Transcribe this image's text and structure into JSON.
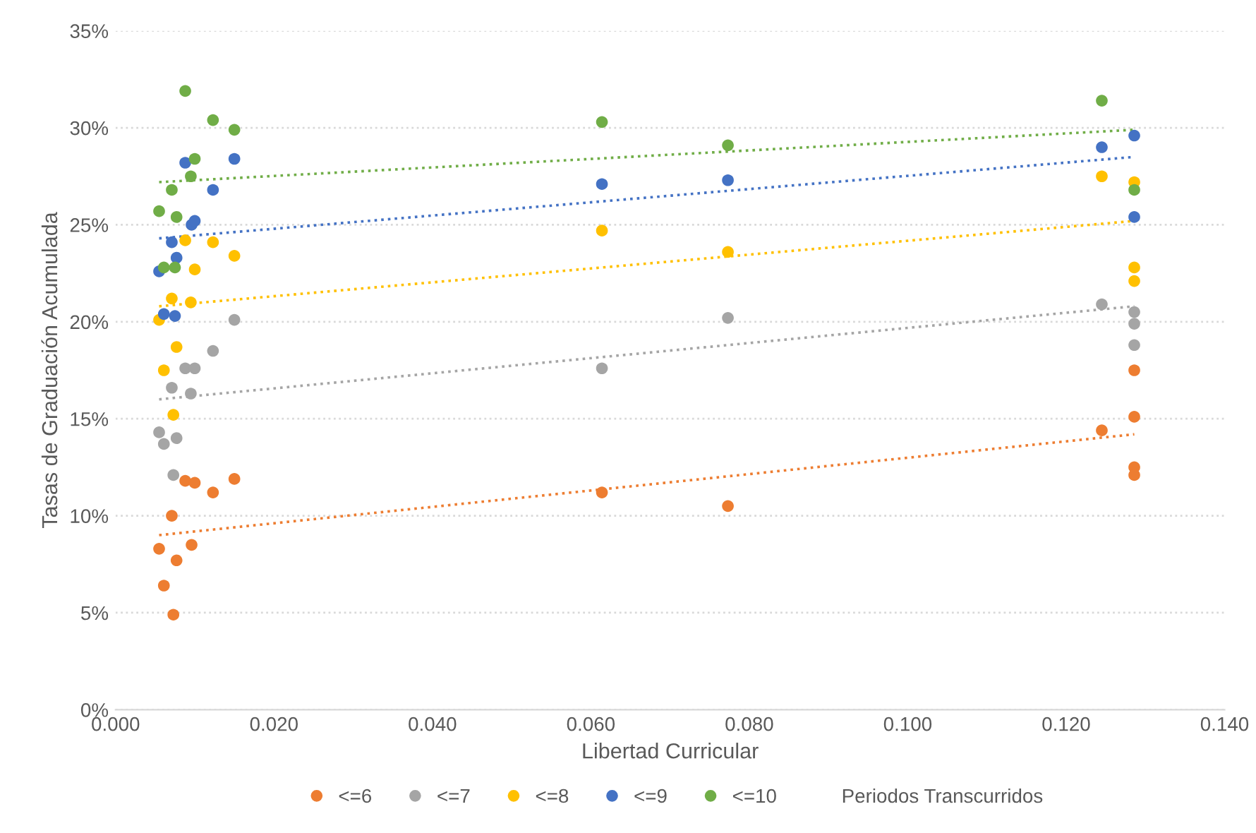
{
  "chart_data": {
    "type": "scatter",
    "xlabel": "Libertad Curricular",
    "ylabel": "Tasas de Graduación Acumulada",
    "legend_title": "Periodos Transcurridos",
    "xlim": [
      0,
      0.14
    ],
    "xticks": [
      {
        "value": 0,
        "label": "0.000"
      },
      {
        "value": 0.02,
        "label": "0.020"
      },
      {
        "value": 0.04,
        "label": "0.040"
      },
      {
        "value": 0.06,
        "label": "0.060"
      },
      {
        "value": 0.08,
        "label": "0.080"
      },
      {
        "value": 0.1,
        "label": "0.100"
      },
      {
        "value": 0.12,
        "label": "0.120"
      },
      {
        "value": 0.14,
        "label": "0.140"
      }
    ],
    "ylim": [
      0,
      35
    ],
    "yticks": [
      {
        "value": 0,
        "label": "0%"
      },
      {
        "value": 5,
        "label": "5%"
      },
      {
        "value": 10,
        "label": "10%"
      },
      {
        "value": 15,
        "label": "15%"
      },
      {
        "value": 20,
        "label": "20%"
      },
      {
        "value": 25,
        "label": "25%"
      },
      {
        "value": 30,
        "label": "30%"
      },
      {
        "value": 35,
        "label": "35%"
      }
    ],
    "grid": "y",
    "legend": "bottom",
    "marker": "circle",
    "series": [
      {
        "name": "<=6",
        "color": "#ed7d31",
        "x": [
          0.0055,
          0.0061,
          0.0071,
          0.0073,
          0.0077,
          0.0088,
          0.0096,
          0.01,
          0.0123,
          0.015,
          0.0614,
          0.0773,
          0.1245,
          0.1286,
          0.1286,
          0.1286,
          0.1286
        ],
        "values": [
          8.3,
          6.4,
          10.0,
          4.9,
          7.7,
          11.8,
          8.5,
          11.7,
          11.2,
          11.9,
          11.2,
          10.5,
          14.4,
          17.5,
          15.1,
          12.5,
          12.1
        ]
      },
      {
        "name": "<=7",
        "color": "#a5a5a5",
        "x": [
          0.0055,
          0.0061,
          0.0071,
          0.0073,
          0.0077,
          0.0088,
          0.0095,
          0.01,
          0.0123,
          0.015,
          0.0614,
          0.0773,
          0.1245,
          0.1286,
          0.1286,
          0.1286
        ],
        "values": [
          14.3,
          13.7,
          16.6,
          12.1,
          14.0,
          17.6,
          16.3,
          17.6,
          18.5,
          20.1,
          17.6,
          20.2,
          20.9,
          20.5,
          19.9,
          18.8
        ]
      },
      {
        "name": "<=8",
        "color": "#ffc000",
        "x": [
          0.0055,
          0.0061,
          0.0071,
          0.0073,
          0.0077,
          0.0088,
          0.0095,
          0.01,
          0.0123,
          0.015,
          0.0614,
          0.0773,
          0.1245,
          0.1286,
          0.1286,
          0.1286
        ],
        "values": [
          20.1,
          17.5,
          21.2,
          15.2,
          18.7,
          24.2,
          21.0,
          22.7,
          24.1,
          23.4,
          24.7,
          23.6,
          27.5,
          27.2,
          22.8,
          22.1
        ]
      },
      {
        "name": "<=9",
        "color": "#4472c4",
        "x": [
          0.0055,
          0.0061,
          0.0071,
          0.0075,
          0.0077,
          0.0088,
          0.0096,
          0.01,
          0.0123,
          0.015,
          0.0614,
          0.0773,
          0.1245,
          0.1286,
          0.1286
        ],
        "values": [
          22.6,
          20.4,
          24.1,
          20.3,
          23.3,
          28.2,
          25.0,
          25.2,
          26.8,
          28.4,
          27.1,
          27.3,
          29.0,
          29.6,
          25.4
        ]
      },
      {
        "name": "<=10",
        "color": "#70ad47",
        "x": [
          0.0055,
          0.0061,
          0.0071,
          0.0075,
          0.0077,
          0.0088,
          0.0095,
          0.01,
          0.0123,
          0.015,
          0.0614,
          0.0773,
          0.1245,
          0.1286
        ],
        "values": [
          25.7,
          22.8,
          26.8,
          22.8,
          25.4,
          31.9,
          27.5,
          28.4,
          30.4,
          29.9,
          30.3,
          29.1,
          31.4,
          26.8
        ]
      },
      {
        "type": "line",
        "marker": "none",
        "line_style": "dotted",
        "color": "#ed7d31",
        "x": [
          0.0055,
          0.1286
        ],
        "values": [
          9.0,
          14.2
        ]
      },
      {
        "type": "line",
        "marker": "none",
        "line_style": "dotted",
        "color": "#a5a5a5",
        "x": [
          0.0055,
          0.1286
        ],
        "values": [
          16.0,
          20.8
        ]
      },
      {
        "type": "line",
        "marker": "none",
        "line_style": "dotted",
        "color": "#ffc000",
        "x": [
          0.0055,
          0.1286
        ],
        "values": [
          20.8,
          25.2
        ]
      },
      {
        "type": "line",
        "marker": "none",
        "line_style": "dotted",
        "color": "#4472c4",
        "x": [
          0.0055,
          0.1286
        ],
        "values": [
          24.3,
          28.5
        ]
      },
      {
        "type": "line",
        "marker": "none",
        "line_style": "dotted",
        "color": "#70ad47",
        "x": [
          0.0055,
          0.1286
        ],
        "values": [
          27.2,
          29.9
        ]
      }
    ]
  }
}
